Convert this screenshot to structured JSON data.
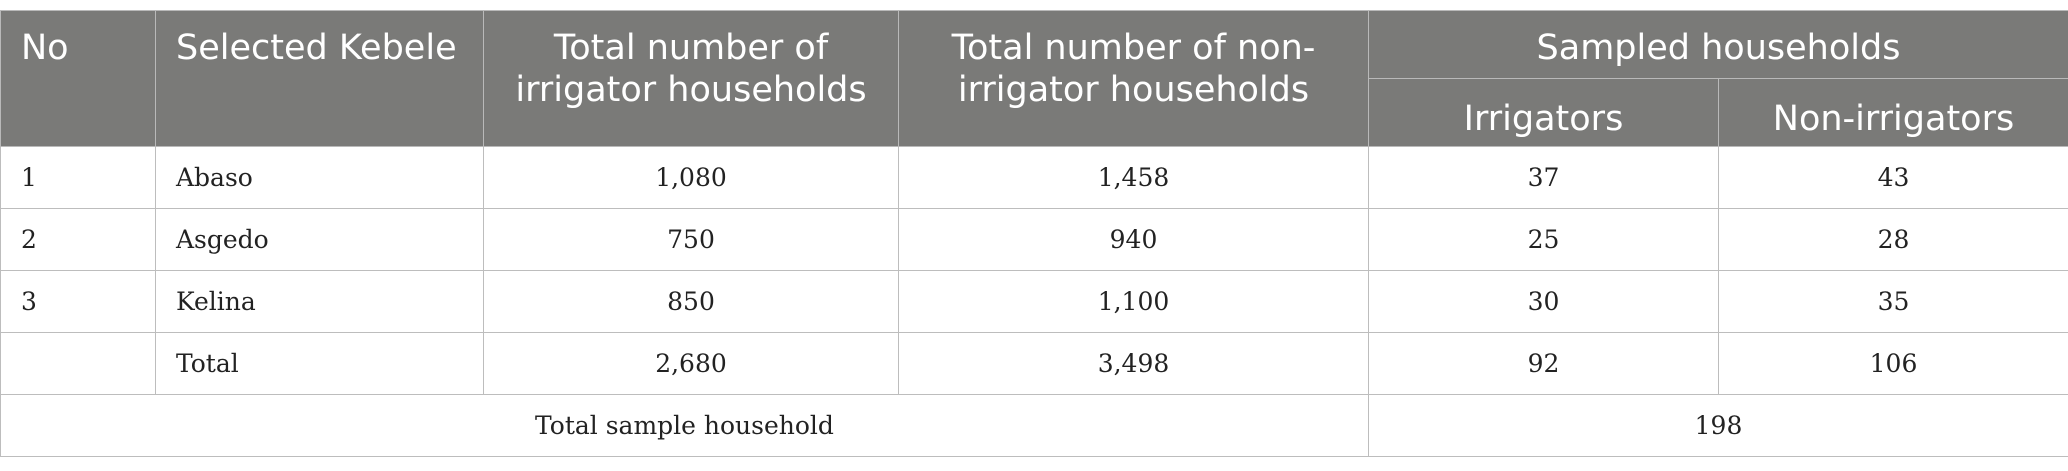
{
  "table": {
    "headers": {
      "no": "No",
      "kebele": "Selected Kebele",
      "total_irrigator": "Total number of irrigator households",
      "total_non_irrigator": "Total number of non-irrigator households",
      "sampled": "Sampled households",
      "irrigators": "Irrigators",
      "non_irrigators": "Non-irrigators"
    },
    "rows": [
      {
        "no": "1",
        "kebele": "Abaso",
        "total_irrigator": "1,080",
        "total_non_irrigator": "1,458",
        "irrigators": "37",
        "non_irrigators": "43"
      },
      {
        "no": "2",
        "kebele": "Asgedo",
        "total_irrigator": "750",
        "total_non_irrigator": "940",
        "irrigators": "25",
        "non_irrigators": "28"
      },
      {
        "no": "3",
        "kebele": "Kelina",
        "total_irrigator": "850",
        "total_non_irrigator": "1,100",
        "irrigators": "30",
        "non_irrigators": "35"
      }
    ],
    "total_row": {
      "no": "",
      "kebele": "Total",
      "total_irrigator": "2,680",
      "total_non_irrigator": "3,498",
      "irrigators": "92",
      "non_irrigators": "106"
    },
    "sample_row": {
      "label": "Total sample household",
      "value": "198"
    }
  }
}
